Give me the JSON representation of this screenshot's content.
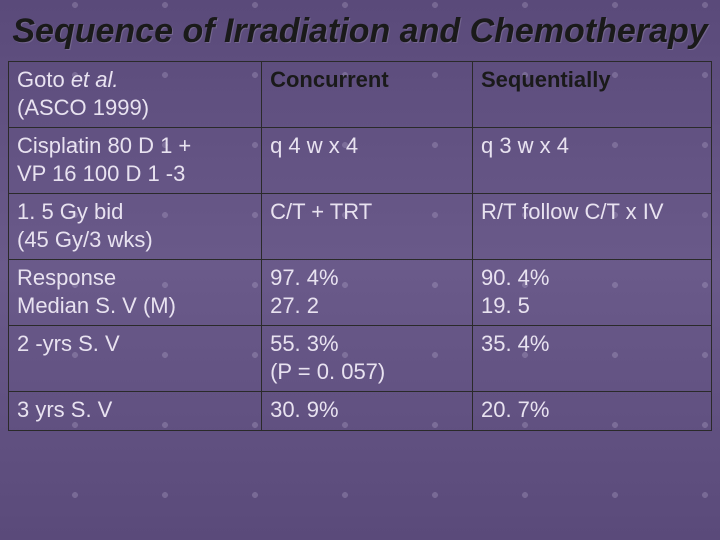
{
  "title": "Sequence of Irradiation and Chemotherapy",
  "table": {
    "columns": [
      "c0",
      "c1",
      "c2"
    ],
    "col_widths_pct": [
      36,
      30,
      34
    ],
    "border_color": "#2a2a2a",
    "header_text_color": "#1a1a1a",
    "body_text_color": "#e8e2f0",
    "font_size_pt": 22,
    "rows": [
      {
        "c0_line1_plain": "Goto ",
        "c0_line1_italic": "et al.",
        "c0_line2": "(ASCO 1999)",
        "c1": "Concurrent",
        "c2": "Sequentially",
        "is_header": true
      },
      {
        "c0_line1": "Cisplatin 80 D 1 +",
        "c0_line2": "VP 16 100 D 1 -3",
        "c1": "q 4 w x 4",
        "c2": "q 3 w x 4"
      },
      {
        "c0_line1": "1. 5 Gy bid",
        "c0_line2": "(45 Gy/3 wks)",
        "c1": "C/T + TRT",
        "c2": "R/T follow C/T x IV"
      },
      {
        "c0_line1": "Response",
        "c0_line2": "Median S. V (M)",
        "c1_line1": "97. 4%",
        "c1_line2": "27. 2",
        "c2_line1": "90. 4%",
        "c2_line2": "19. 5"
      },
      {
        "c0": "2 -yrs S. V",
        "c1_line1": "55. 3%",
        "c1_line2": " (P = 0. 057)",
        "c2": "35. 4%"
      },
      {
        "c0": "3 yrs S. V",
        "c1": "30. 9%",
        "c2": "20. 7%"
      }
    ]
  },
  "colors": {
    "background_top": "#5a4a7a",
    "background_mid": "#6a5a8a",
    "title_color": "#1a1a1a"
  }
}
